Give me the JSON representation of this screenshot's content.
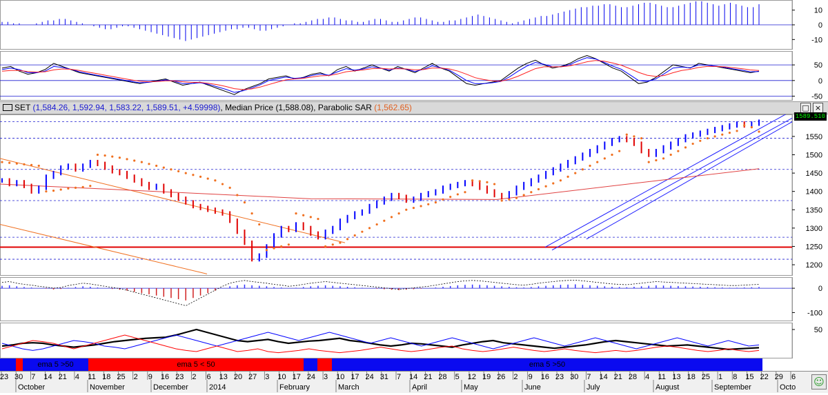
{
  "window": {
    "symbol": "SET",
    "ohlc": "(1,584.26, 1,592.94, 1,583.22, 1,589.51, +4.59998)",
    "median_label": "Median Price",
    "median_value": "(1,588.08)",
    "sar_label": "Parabolic SAR",
    "sar_value": "(1,562.65)",
    "maximize_glyph": "□",
    "close_glyph": "×",
    "last_price": "1589.510"
  },
  "colors": {
    "price_up": "#0000ff",
    "price_down": "#e00000",
    "sar": "#f07020",
    "band_blue": "#0a0af0",
    "band_red": "#ff0000",
    "grid": "#1a1ad0"
  },
  "ema_band": {
    "segments": [
      {
        "color": "blue",
        "label": ""
      },
      {
        "color": "red",
        "label": ""
      },
      {
        "color": "blue",
        "label": "ema 5 >50"
      },
      {
        "color": "red",
        "label": "ema 5 < 50"
      },
      {
        "color": "blue",
        "label": ""
      },
      {
        "color": "red",
        "label": ""
      },
      {
        "color": "blue",
        "label": "ema 5 >50"
      }
    ]
  },
  "date_axis": {
    "days": [
      "23",
      "30",
      "7",
      "14",
      "21",
      "4",
      "11",
      "18",
      "25",
      "2",
      "9",
      "16",
      "23",
      "2",
      "6",
      "13",
      "20",
      "27",
      "3",
      "10",
      "17",
      "24",
      "3",
      "10",
      "17",
      "24",
      "31",
      "7",
      "14",
      "21",
      "28",
      "5",
      "12",
      "19",
      "26",
      "2",
      "9",
      "16",
      "23",
      "30",
      "7",
      "14",
      "21",
      "28",
      "4",
      "11",
      "13",
      "18",
      "25",
      "1",
      "8",
      "15",
      "22",
      "29",
      "6"
    ],
    "months": [
      "October",
      "November",
      "December",
      "2014",
      "February",
      "March",
      "April",
      "May",
      "June",
      "July",
      "August",
      "September",
      "Octo"
    ]
  },
  "chart_data": [
    {
      "type": "bar",
      "name_shown": "",
      "title": "",
      "ylim": [
        -15,
        15
      ],
      "y_ticks": [
        10,
        0,
        -10
      ],
      "values": [
        2,
        2,
        1,
        1,
        0,
        0,
        1,
        2,
        3,
        3,
        4,
        4,
        3,
        2,
        1,
        0,
        -1,
        -2,
        -3,
        -3,
        -2,
        -1,
        -1,
        -2,
        -3,
        -4,
        -5,
        -6,
        -7,
        -8,
        -9,
        -10,
        -11,
        -10,
        -9,
        -8,
        -7,
        -6,
        -5,
        -4,
        -3,
        -3,
        -2,
        -2,
        -3,
        -4,
        -4,
        -3,
        -2,
        -1,
        0,
        1,
        1,
        2,
        3,
        4,
        4,
        5,
        5,
        4,
        3,
        3,
        2,
        2,
        3,
        4,
        4,
        3,
        2,
        2,
        3,
        4,
        5,
        5,
        4,
        3,
        2,
        2,
        3,
        3,
        4,
        5,
        6,
        7,
        6,
        5,
        4,
        3,
        2,
        1,
        2,
        3,
        4,
        5,
        6,
        6,
        7,
        8,
        9,
        10,
        11,
        12,
        12,
        13,
        13,
        14,
        14,
        13,
        12,
        12,
        13,
        14,
        15,
        15,
        14,
        13,
        12,
        12,
        13,
        14,
        15,
        16,
        16,
        15,
        14,
        13,
        14,
        15,
        14,
        13,
        12,
        12,
        14
      ]
    },
    {
      "type": "line",
      "name_shown": "",
      "title": "",
      "ylim": [
        -60,
        90
      ],
      "y_ticks": [
        50,
        0,
        -50
      ],
      "hlines": [
        50,
        0,
        -50
      ],
      "series": [
        {
          "color": "#000000",
          "values": [
            40,
            45,
            30,
            20,
            25,
            35,
            55,
            45,
            35,
            25,
            20,
            15,
            10,
            5,
            0,
            -5,
            -10,
            -5,
            0,
            5,
            -5,
            -15,
            -10,
            -5,
            -15,
            -25,
            -35,
            -45,
            -30,
            -20,
            -10,
            5,
            10,
            15,
            5,
            10,
            20,
            25,
            15,
            35,
            45,
            30,
            40,
            50,
            40,
            30,
            45,
            35,
            25,
            40,
            55,
            40,
            30,
            10,
            -10,
            -15,
            -10,
            -5,
            0,
            20,
            40,
            55,
            65,
            50,
            40,
            45,
            55,
            70,
            80,
            70,
            55,
            40,
            30,
            10,
            -10,
            -5,
            10,
            30,
            50,
            45,
            40,
            55,
            50,
            45,
            40,
            35,
            30,
            25,
            30
          ]
        },
        {
          "color": "#0000ff",
          "values": [
            35,
            40,
            35,
            25,
            25,
            30,
            45,
            42,
            36,
            28,
            22,
            17,
            12,
            7,
            2,
            -3,
            -7,
            -6,
            -2,
            2,
            -2,
            -10,
            -10,
            -7,
            -12,
            -20,
            -28,
            -38,
            -33,
            -24,
            -14,
            0,
            6,
            11,
            7,
            9,
            16,
            21,
            17,
            28,
            38,
            33,
            37,
            44,
            40,
            33,
            40,
            36,
            29,
            36,
            47,
            41,
            33,
            17,
            0,
            -10,
            -10,
            -7,
            -3,
            12,
            30,
            46,
            58,
            52,
            44,
            44,
            51,
            63,
            73,
            69,
            58,
            46,
            36,
            18,
            0,
            -3,
            5,
            22,
            40,
            43,
            41,
            50,
            49,
            46,
            42,
            37,
            33,
            28,
            29
          ]
        },
        {
          "color": "#ff2020",
          "values": [
            30,
            32,
            32,
            29,
            27,
            28,
            34,
            37,
            36,
            32,
            27,
            22,
            17,
            12,
            7,
            2,
            -2,
            -4,
            -3,
            -1,
            -1,
            -4,
            -6,
            -6,
            -9,
            -13,
            -19,
            -26,
            -29,
            -27,
            -21,
            -13,
            -5,
            2,
            5,
            7,
            11,
            15,
            16,
            21,
            28,
            31,
            34,
            38,
            39,
            37,
            38,
            37,
            34,
            35,
            40,
            40,
            37,
            30,
            20,
            9,
            3,
            -1,
            -2,
            4,
            14,
            26,
            38,
            44,
            44,
            44,
            47,
            53,
            60,
            64,
            62,
            56,
            49,
            38,
            26,
            17,
            13,
            16,
            25,
            32,
            36,
            42,
            45,
            45,
            44,
            41,
            38,
            34,
            32
          ]
        }
      ]
    },
    {
      "type": "line",
      "name_shown": "SET",
      "title": "",
      "ylim": [
        1170,
        1610
      ],
      "y_ticks": [
        1550,
        1500,
        1450,
        1400,
        1350,
        1300,
        1250,
        1200
      ],
      "hlines_dashed": [
        1590,
        1545,
        1460,
        1375,
        1275,
        1215
      ],
      "hline_solid_red": 1248,
      "series": [
        {
          "name": "close",
          "values": [
            1430,
            1420,
            1425,
            1415,
            1400,
            1410,
            1440,
            1450,
            1465,
            1470,
            1460,
            1470,
            1480,
            1475,
            1465,
            1455,
            1450,
            1440,
            1430,
            1420,
            1410,
            1415,
            1400,
            1390,
            1380,
            1370,
            1360,
            1355,
            1350,
            1345,
            1340,
            1320,
            1290,
            1260,
            1215,
            1225,
            1250,
            1280,
            1300,
            1295,
            1310,
            1300,
            1285,
            1275,
            1290,
            1300,
            1320,
            1330,
            1340,
            1345,
            1360,
            1370,
            1380,
            1390,
            1385,
            1375,
            1380,
            1390,
            1395,
            1400,
            1410,
            1415,
            1420,
            1425,
            1420,
            1410,
            1400,
            1390,
            1385,
            1395,
            1410,
            1420,
            1430,
            1440,
            1450,
            1460,
            1470,
            1480,
            1490,
            1500,
            1510,
            1520,
            1530,
            1540,
            1545,
            1540,
            1530,
            1510,
            1500,
            1510,
            1520,
            1530,
            1540,
            1550,
            1555,
            1560,
            1565,
            1570,
            1575,
            1580,
            1585,
            1580,
            1585,
            1590
          ]
        },
        {
          "name": "Parabolic SAR",
          "values": [
            1480,
            1478,
            1476,
            1474,
            1472,
            1470,
            1400,
            1402,
            1405,
            1408,
            1410,
            1412,
            1415,
            1500,
            1498,
            1495,
            1492,
            1488,
            1484,
            1480,
            1475,
            1470,
            1465,
            1460,
            1455,
            1450,
            1445,
            1440,
            1435,
            1430,
            1420,
            1410,
            1390,
            1370,
            1340,
            1310,
            1240,
            1245,
            1250,
            1255,
            1340,
            1335,
            1330,
            1325,
            1250,
            1255,
            1260,
            1270,
            1280,
            1290,
            1300,
            1310,
            1320,
            1330,
            1340,
            1350,
            1355,
            1360,
            1365,
            1370,
            1378,
            1385,
            1392,
            1398,
            1430,
            1428,
            1425,
            1420,
            1375,
            1378,
            1382,
            1390,
            1398,
            1406,
            1414,
            1422,
            1430,
            1440,
            1450,
            1460,
            1470,
            1480,
            1490,
            1500,
            1510,
            1555,
            1550,
            1545,
            1480,
            1485,
            1490,
            1500,
            1510,
            1520,
            1530,
            1538,
            1545,
            1550,
            1555,
            1560,
            1565,
            1580,
            1575,
            1563
          ]
        }
      ],
      "last_price": 1589.51
    },
    {
      "type": "bar",
      "name_shown": "",
      "title": "",
      "ylim": [
        -130,
        40
      ],
      "y_ticks": [
        0,
        -100
      ],
      "values": [
        10,
        12,
        8,
        5,
        3,
        0,
        -2,
        -5,
        -3,
        2,
        5,
        8,
        6,
        3,
        0,
        -3,
        -6,
        -10,
        -15,
        -20,
        -25,
        -30,
        -35,
        -40,
        -45,
        -50,
        -40,
        -30,
        -20,
        -10,
        0,
        8,
        12,
        15,
        12,
        10,
        8,
        5,
        3,
        0,
        2,
        5,
        8,
        10,
        12,
        10,
        8,
        6,
        4,
        2,
        0,
        -2,
        -4,
        -6,
        -8,
        -6,
        -4,
        -2,
        0,
        3,
        6,
        9,
        12,
        14,
        15,
        14,
        12,
        10,
        8,
        6,
        4,
        3,
        5,
        8,
        10,
        12,
        14,
        15,
        16,
        14,
        12,
        10,
        8,
        6,
        5,
        4,
        6,
        8,
        10,
        12,
        11,
        10,
        9,
        8,
        7,
        6,
        5,
        4,
        3,
        2,
        2,
        3,
        4,
        5
      ]
    },
    {
      "type": "line",
      "name_shown": "",
      "title": "",
      "ylim": [
        0,
        60
      ],
      "y_ticks": [
        50
      ],
      "series": [
        {
          "color": "#000000",
          "values": [
            20,
            22,
            25,
            26,
            25,
            22,
            20,
            18,
            20,
            22,
            25,
            28,
            30,
            32,
            34,
            35,
            36,
            40,
            45,
            50,
            45,
            40,
            35,
            30,
            28,
            30,
            32,
            28,
            25,
            27,
            29,
            30,
            32,
            34,
            30,
            28,
            25,
            22,
            20,
            22,
            25,
            24,
            22,
            20,
            18,
            22,
            25,
            28,
            30,
            26,
            24,
            22,
            20,
            18,
            16,
            18,
            20,
            22,
            25,
            28,
            30,
            28,
            26,
            24,
            22,
            20,
            21,
            22,
            20,
            18,
            16,
            14,
            15,
            16,
            17
          ]
        },
        {
          "color": "#0000ff",
          "values": [
            25,
            20,
            15,
            12,
            15,
            20,
            25,
            30,
            28,
            25,
            20,
            18,
            15,
            20,
            25,
            30,
            35,
            40,
            35,
            30,
            25,
            20,
            25,
            30,
            35,
            40,
            45,
            40,
            35,
            30,
            35,
            40,
            45,
            40,
            35,
            30,
            25,
            30,
            35,
            30,
            25,
            20,
            25,
            30,
            35,
            30,
            25,
            20,
            15,
            20,
            25,
            30,
            35,
            30,
            25,
            20,
            25,
            30,
            35,
            30,
            25,
            20,
            15,
            20,
            25,
            30,
            35,
            30,
            25,
            20,
            25,
            30,
            25,
            20,
            22
          ]
        },
        {
          "color": "#ff0000",
          "values": [
            15,
            20,
            25,
            30,
            28,
            25,
            20,
            15,
            20,
            25,
            30,
            35,
            40,
            35,
            30,
            25,
            20,
            15,
            12,
            10,
            15,
            20,
            15,
            10,
            12,
            15,
            10,
            8,
            10,
            12,
            15,
            12,
            10,
            8,
            10,
            12,
            15,
            18,
            15,
            12,
            10,
            12,
            15,
            18,
            20,
            15,
            12,
            10,
            12,
            15,
            18,
            15,
            12,
            10,
            12,
            15,
            12,
            10,
            8,
            10,
            12,
            10,
            12,
            15,
            18,
            20,
            18,
            15,
            12,
            10,
            12,
            15,
            12,
            10,
            12
          ]
        }
      ]
    }
  ]
}
